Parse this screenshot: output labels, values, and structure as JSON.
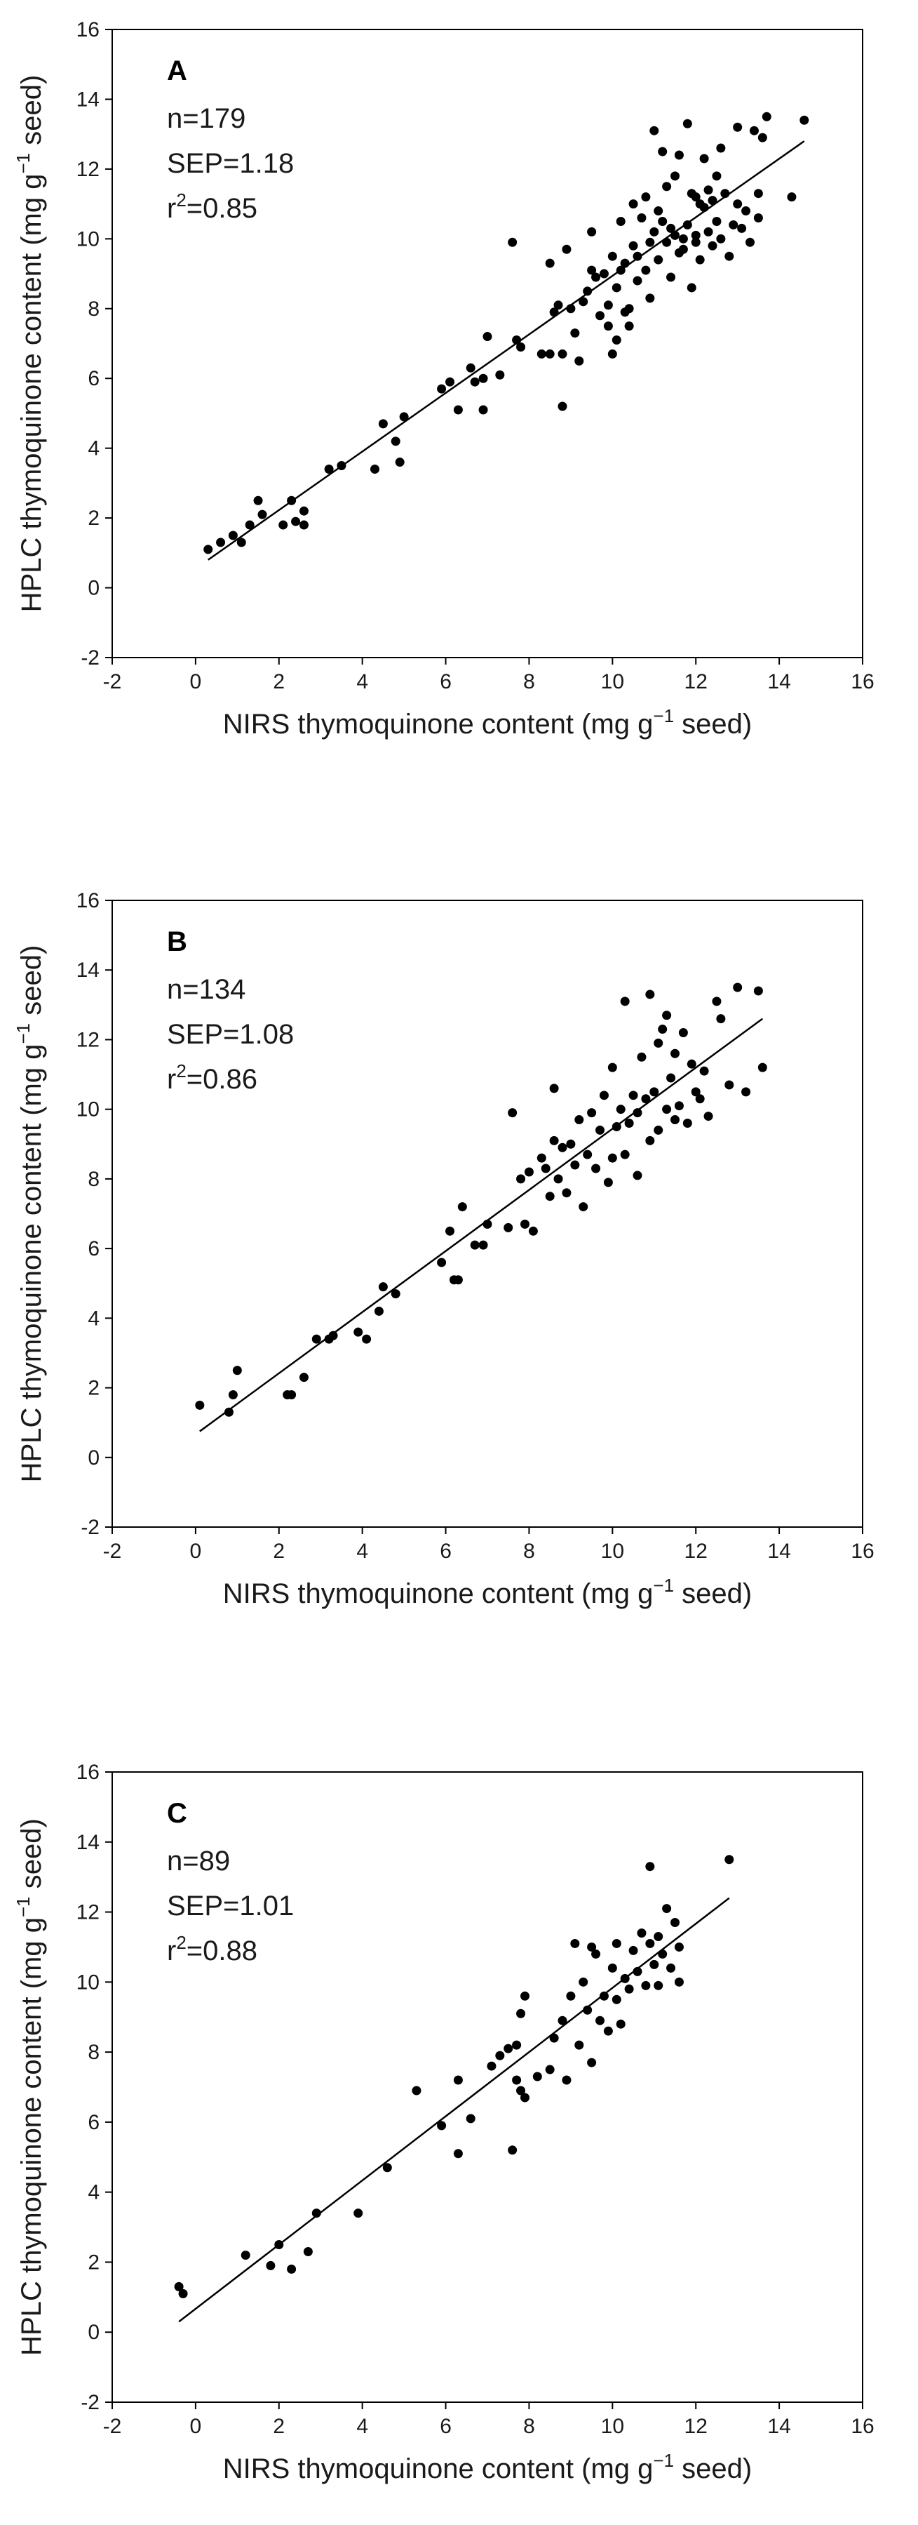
{
  "chart_data": [
    {
      "type": "scatter",
      "panel": "A",
      "stats": [
        "n=179",
        "SEP=1.18",
        "r2=0.85"
      ],
      "stat_lines": [
        {
          "text": "n=179",
          "sup": "",
          "rest": ""
        },
        {
          "text": "SEP=1.18",
          "sup": "",
          "rest": ""
        },
        {
          "text": "r",
          "sup": "2",
          "rest": "=0.85"
        }
      ],
      "xlabel": {
        "pre": "NIRS thymoquinone content (mg g",
        "sup": "−1",
        "post": " seed)"
      },
      "ylabel": {
        "pre": "HPLC thymoquinone content (mg g",
        "sup": "−1",
        "post": " seed)"
      },
      "xlim": [
        -2,
        16
      ],
      "ylim": [
        -2,
        16
      ],
      "xticks": [
        -2,
        0,
        2,
        4,
        6,
        8,
        10,
        12,
        14,
        16
      ],
      "yticks": [
        -2,
        0,
        2,
        4,
        6,
        8,
        10,
        12,
        14,
        16
      ],
      "fit_line": [
        [
          0.3,
          0.8
        ],
        [
          14.6,
          12.8
        ]
      ],
      "points": [
        [
          0.3,
          1.1
        ],
        [
          0.6,
          1.3
        ],
        [
          0.9,
          1.5
        ],
        [
          1.1,
          1.3
        ],
        [
          1.3,
          1.8
        ],
        [
          1.5,
          2.5
        ],
        [
          1.6,
          2.1
        ],
        [
          2.1,
          1.8
        ],
        [
          2.3,
          2.5
        ],
        [
          2.4,
          1.9
        ],
        [
          2.6,
          2.2
        ],
        [
          2.6,
          1.8
        ],
        [
          3.2,
          3.4
        ],
        [
          3.5,
          3.5
        ],
        [
          4.3,
          3.4
        ],
        [
          4.5,
          4.7
        ],
        [
          4.8,
          4.2
        ],
        [
          4.9,
          3.6
        ],
        [
          5.0,
          4.9
        ],
        [
          5.9,
          5.7
        ],
        [
          6.1,
          5.9
        ],
        [
          6.3,
          5.1
        ],
        [
          6.6,
          6.3
        ],
        [
          6.7,
          5.9
        ],
        [
          6.9,
          6.0
        ],
        [
          6.9,
          5.1
        ],
        [
          7.0,
          7.2
        ],
        [
          7.3,
          6.1
        ],
        [
          7.6,
          9.9
        ],
        [
          7.7,
          7.1
        ],
        [
          7.8,
          6.9
        ],
        [
          8.3,
          6.7
        ],
        [
          8.5,
          6.7
        ],
        [
          8.5,
          9.3
        ],
        [
          8.6,
          7.9
        ],
        [
          8.7,
          8.1
        ],
        [
          8.8,
          5.2
        ],
        [
          8.8,
          6.7
        ],
        [
          8.9,
          9.7
        ],
        [
          9.0,
          8.0
        ],
        [
          9.1,
          7.3
        ],
        [
          9.2,
          6.5
        ],
        [
          9.3,
          8.2
        ],
        [
          9.4,
          8.5
        ],
        [
          9.5,
          9.1
        ],
        [
          9.5,
          10.2
        ],
        [
          9.6,
          8.9
        ],
        [
          9.7,
          7.8
        ],
        [
          9.8,
          9.0
        ],
        [
          9.9,
          7.5
        ],
        [
          9.9,
          8.1
        ],
        [
          10.0,
          6.7
        ],
        [
          10.0,
          9.5
        ],
        [
          10.1,
          7.1
        ],
        [
          10.1,
          8.6
        ],
        [
          10.2,
          9.1
        ],
        [
          10.2,
          10.5
        ],
        [
          10.3,
          7.9
        ],
        [
          10.3,
          9.3
        ],
        [
          10.4,
          8.0
        ],
        [
          10.4,
          7.5
        ],
        [
          10.5,
          9.8
        ],
        [
          10.5,
          11.0
        ],
        [
          10.6,
          8.8
        ],
        [
          10.6,
          9.5
        ],
        [
          10.7,
          10.6
        ],
        [
          10.8,
          9.1
        ],
        [
          10.8,
          11.2
        ],
        [
          10.9,
          8.3
        ],
        [
          10.9,
          9.9
        ],
        [
          11.0,
          13.1
        ],
        [
          11.0,
          10.2
        ],
        [
          11.1,
          10.8
        ],
        [
          11.1,
          9.4
        ],
        [
          11.2,
          10.5
        ],
        [
          11.2,
          12.5
        ],
        [
          11.3,
          9.9
        ],
        [
          11.3,
          11.5
        ],
        [
          11.4,
          10.3
        ],
        [
          11.4,
          8.9
        ],
        [
          11.5,
          10.1
        ],
        [
          11.5,
          11.8
        ],
        [
          11.6,
          9.6
        ],
        [
          11.6,
          12.4
        ],
        [
          11.7,
          10.0
        ],
        [
          11.7,
          9.7
        ],
        [
          11.8,
          13.3
        ],
        [
          11.8,
          10.4
        ],
        [
          11.9,
          11.3
        ],
        [
          11.9,
          8.6
        ],
        [
          12.0,
          11.2
        ],
        [
          12.0,
          10.1
        ],
        [
          12.0,
          9.9
        ],
        [
          12.1,
          11.0
        ],
        [
          12.1,
          9.4
        ],
        [
          12.2,
          10.9
        ],
        [
          12.2,
          12.3
        ],
        [
          12.3,
          10.2
        ],
        [
          12.3,
          11.4
        ],
        [
          12.4,
          11.1
        ],
        [
          12.4,
          9.8
        ],
        [
          12.5,
          10.5
        ],
        [
          12.5,
          11.8
        ],
        [
          12.6,
          10.0
        ],
        [
          12.6,
          12.6
        ],
        [
          12.7,
          11.3
        ],
        [
          12.8,
          9.5
        ],
        [
          12.9,
          10.4
        ],
        [
          13.0,
          13.2
        ],
        [
          13.0,
          11.0
        ],
        [
          13.1,
          10.3
        ],
        [
          13.2,
          10.8
        ],
        [
          13.3,
          9.9
        ],
        [
          13.4,
          13.1
        ],
        [
          13.5,
          10.6
        ],
        [
          13.5,
          11.3
        ],
        [
          13.6,
          12.9
        ],
        [
          13.7,
          13.5
        ],
        [
          14.3,
          11.2
        ],
        [
          14.6,
          13.4
        ]
      ]
    },
    {
      "type": "scatter",
      "panel": "B",
      "stats": [
        "n=134",
        "SEP=1.08",
        "r2=0.86"
      ],
      "stat_lines": [
        {
          "text": "n=134",
          "sup": "",
          "rest": ""
        },
        {
          "text": "SEP=1.08",
          "sup": "",
          "rest": ""
        },
        {
          "text": "r",
          "sup": "2",
          "rest": "=0.86"
        }
      ],
      "xlabel": {
        "pre": "NIRS thymoquinone content (mg g",
        "sup": "−1",
        "post": " seed)"
      },
      "ylabel": {
        "pre": "HPLC thymoquinone content (mg g",
        "sup": "−1",
        "post": " seed)"
      },
      "xlim": [
        -2,
        16
      ],
      "ylim": [
        -2,
        16
      ],
      "xticks": [
        -2,
        0,
        2,
        4,
        6,
        8,
        10,
        12,
        14,
        16
      ],
      "yticks": [
        -2,
        0,
        2,
        4,
        6,
        8,
        10,
        12,
        14,
        16
      ],
      "fit_line": [
        [
          0.1,
          0.75
        ],
        [
          13.6,
          12.6
        ]
      ],
      "points": [
        [
          0.1,
          1.5
        ],
        [
          0.8,
          1.3
        ],
        [
          0.9,
          1.8
        ],
        [
          1.0,
          2.5
        ],
        [
          2.2,
          1.8
        ],
        [
          2.3,
          1.8
        ],
        [
          2.6,
          2.3
        ],
        [
          2.9,
          3.4
        ],
        [
          3.2,
          3.4
        ],
        [
          3.3,
          3.5
        ],
        [
          3.9,
          3.6
        ],
        [
          4.1,
          3.4
        ],
        [
          4.4,
          4.2
        ],
        [
          4.5,
          4.9
        ],
        [
          4.8,
          4.7
        ],
        [
          5.9,
          5.6
        ],
        [
          6.1,
          6.5
        ],
        [
          6.2,
          5.1
        ],
        [
          6.3,
          5.1
        ],
        [
          6.4,
          7.2
        ],
        [
          6.7,
          6.1
        ],
        [
          6.9,
          6.1
        ],
        [
          7.0,
          6.7
        ],
        [
          7.5,
          6.6
        ],
        [
          7.6,
          9.9
        ],
        [
          7.8,
          8.0
        ],
        [
          7.9,
          6.7
        ],
        [
          8.0,
          8.2
        ],
        [
          8.1,
          6.5
        ],
        [
          8.3,
          8.6
        ],
        [
          8.4,
          8.3
        ],
        [
          8.5,
          7.5
        ],
        [
          8.6,
          9.1
        ],
        [
          8.6,
          10.6
        ],
        [
          8.7,
          8.0
        ],
        [
          8.8,
          8.9
        ],
        [
          8.9,
          7.6
        ],
        [
          9.0,
          9.0
        ],
        [
          9.1,
          8.4
        ],
        [
          9.2,
          9.7
        ],
        [
          9.3,
          7.2
        ],
        [
          9.4,
          8.7
        ],
        [
          9.5,
          9.9
        ],
        [
          9.6,
          8.3
        ],
        [
          9.7,
          9.4
        ],
        [
          9.8,
          10.4
        ],
        [
          9.9,
          7.9
        ],
        [
          10.0,
          11.2
        ],
        [
          10.0,
          8.6
        ],
        [
          10.1,
          9.5
        ],
        [
          10.2,
          10.0
        ],
        [
          10.3,
          13.1
        ],
        [
          10.3,
          8.7
        ],
        [
          10.4,
          9.6
        ],
        [
          10.5,
          10.4
        ],
        [
          10.6,
          8.1
        ],
        [
          10.6,
          9.9
        ],
        [
          10.7,
          11.5
        ],
        [
          10.8,
          10.3
        ],
        [
          10.9,
          9.1
        ],
        [
          10.9,
          13.3
        ],
        [
          11.0,
          10.5
        ],
        [
          11.1,
          11.9
        ],
        [
          11.1,
          9.4
        ],
        [
          11.2,
          12.3
        ],
        [
          11.3,
          12.7
        ],
        [
          11.3,
          10.0
        ],
        [
          11.4,
          10.9
        ],
        [
          11.5,
          9.7
        ],
        [
          11.5,
          11.6
        ],
        [
          11.6,
          10.1
        ],
        [
          11.7,
          12.2
        ],
        [
          11.8,
          9.6
        ],
        [
          11.9,
          11.3
        ],
        [
          12.0,
          10.5
        ],
        [
          12.1,
          10.3
        ],
        [
          12.2,
          11.1
        ],
        [
          12.3,
          9.8
        ],
        [
          12.5,
          13.1
        ],
        [
          12.6,
          12.6
        ],
        [
          12.8,
          10.7
        ],
        [
          13.0,
          13.5
        ],
        [
          13.2,
          10.5
        ],
        [
          13.5,
          13.4
        ],
        [
          13.6,
          11.2
        ]
      ]
    },
    {
      "type": "scatter",
      "panel": "C",
      "stats": [
        "n=89",
        "SEP=1.01",
        "r2=0.88"
      ],
      "stat_lines": [
        {
          "text": "n=89",
          "sup": "",
          "rest": ""
        },
        {
          "text": "SEP=1.01",
          "sup": "",
          "rest": ""
        },
        {
          "text": "r",
          "sup": "2",
          "rest": "=0.88"
        }
      ],
      "xlabel": {
        "pre": "NIRS thymoquinone content (mg g",
        "sup": "−1",
        "post": " seed)"
      },
      "ylabel": {
        "pre": "HPLC thymoquinone content (mg g",
        "sup": "−1",
        "post": " seed)"
      },
      "xlim": [
        -2,
        16
      ],
      "ylim": [
        -2,
        16
      ],
      "xticks": [
        -2,
        0,
        2,
        4,
        6,
        8,
        10,
        12,
        14,
        16
      ],
      "yticks": [
        -2,
        0,
        2,
        4,
        6,
        8,
        10,
        12,
        14,
        16
      ],
      "fit_line": [
        [
          -0.4,
          0.3
        ],
        [
          12.8,
          12.4
        ]
      ],
      "points": [
        [
          -0.4,
          1.3
        ],
        [
          -0.3,
          1.1
        ],
        [
          1.2,
          2.2
        ],
        [
          1.8,
          1.9
        ],
        [
          2.0,
          2.5
        ],
        [
          2.3,
          1.8
        ],
        [
          2.7,
          2.3
        ],
        [
          2.9,
          3.4
        ],
        [
          3.9,
          3.4
        ],
        [
          4.6,
          4.7
        ],
        [
          5.3,
          6.9
        ],
        [
          5.9,
          5.9
        ],
        [
          6.3,
          5.1
        ],
        [
          6.3,
          7.2
        ],
        [
          6.6,
          6.1
        ],
        [
          7.1,
          7.6
        ],
        [
          7.3,
          7.9
        ],
        [
          7.5,
          8.1
        ],
        [
          7.6,
          5.2
        ],
        [
          7.7,
          8.2
        ],
        [
          7.7,
          7.2
        ],
        [
          7.8,
          9.1
        ],
        [
          7.8,
          6.9
        ],
        [
          7.9,
          9.6
        ],
        [
          7.9,
          6.7
        ],
        [
          8.2,
          7.3
        ],
        [
          8.5,
          7.5
        ],
        [
          8.6,
          8.4
        ],
        [
          8.8,
          8.9
        ],
        [
          8.9,
          7.2
        ],
        [
          9.0,
          9.6
        ],
        [
          9.1,
          11.1
        ],
        [
          9.2,
          8.2
        ],
        [
          9.3,
          10.0
        ],
        [
          9.4,
          9.2
        ],
        [
          9.5,
          7.7
        ],
        [
          9.5,
          11.0
        ],
        [
          9.6,
          10.8
        ],
        [
          9.7,
          8.9
        ],
        [
          9.8,
          9.6
        ],
        [
          9.9,
          8.6
        ],
        [
          10.0,
          10.4
        ],
        [
          10.1,
          9.5
        ],
        [
          10.1,
          11.1
        ],
        [
          10.2,
          8.8
        ],
        [
          10.3,
          10.1
        ],
        [
          10.4,
          9.8
        ],
        [
          10.5,
          10.9
        ],
        [
          10.6,
          10.3
        ],
        [
          10.7,
          11.4
        ],
        [
          10.8,
          9.9
        ],
        [
          10.9,
          11.1
        ],
        [
          10.9,
          13.3
        ],
        [
          11.0,
          10.5
        ],
        [
          11.1,
          9.9
        ],
        [
          11.1,
          11.3
        ],
        [
          11.2,
          10.8
        ],
        [
          11.3,
          12.1
        ],
        [
          11.4,
          10.4
        ],
        [
          11.5,
          11.7
        ],
        [
          11.6,
          11.0
        ],
        [
          11.6,
          10.0
        ],
        [
          12.8,
          13.5
        ]
      ]
    }
  ]
}
